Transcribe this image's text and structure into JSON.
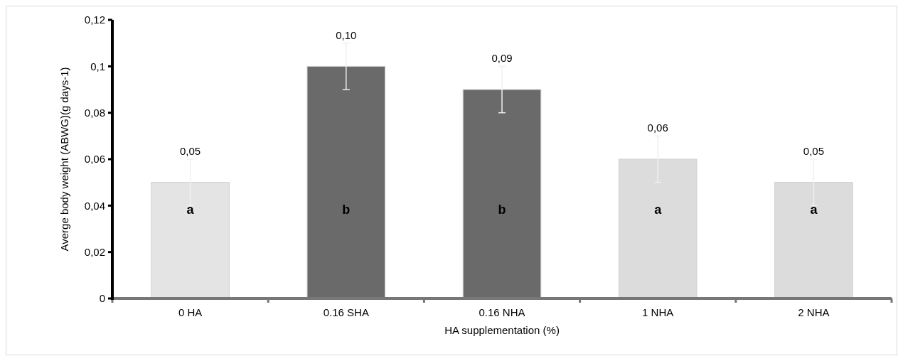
{
  "chart_data": {
    "type": "bar",
    "xlabel": "HA supplementation (%)",
    "ylabel": "Averge body weight (ABWG)(g days-1)",
    "categories": [
      "0 HA",
      "0.16 SHA",
      "0.16 NHA",
      "1 NHA",
      "2 NHA"
    ],
    "values": [
      0.05,
      0.1,
      0.09,
      0.06,
      0.05
    ],
    "colors": [
      "#e4e4e4",
      "#6a6a6a",
      "#6a6a6a",
      "#dcdcdc",
      "#dcdcdc"
    ],
    "value_labels": [
      "0,05",
      "0,10",
      "0,09",
      "0,06",
      "0,05"
    ],
    "errors": [
      0.01,
      0.01,
      0.01,
      0.01,
      0.01
    ],
    "ylim": [
      0,
      0.12
    ],
    "yticks": [
      0,
      {
        "value": 0.02,
        "label": "0,02"
      },
      {
        "value": 0.04,
        "label": "0,04"
      },
      {
        "value": 0.06,
        "label": "0,06"
      },
      {
        "value": 0.08,
        "label": "0,08"
      },
      {
        "value": 0.1,
        "label": "0,1"
      },
      {
        "value": 0.12,
        "label": "0,12"
      }
    ],
    "annotations": [
      "a",
      "b",
      "b",
      "a",
      "a"
    ],
    "grid": false
  }
}
